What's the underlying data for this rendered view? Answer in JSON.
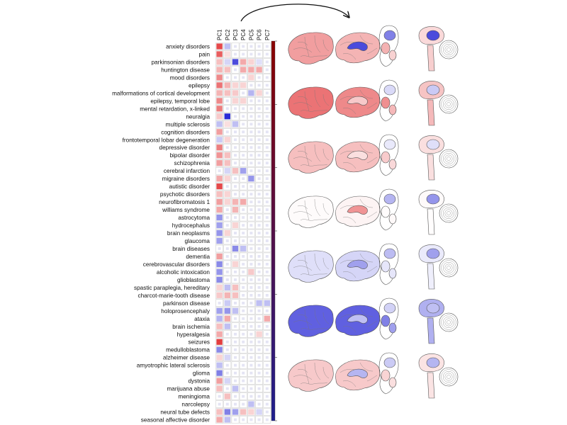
{
  "chart_data": {
    "type": "heatmap",
    "columns": [
      "PC1",
      "PC2",
      "PC3",
      "PC4",
      "PC5",
      "PC6",
      "PC7"
    ],
    "rows": [
      "anxiety disorders",
      "pain",
      "parkinsonian disorders",
      "huntington disease",
      "mood disorders",
      "epilepsy",
      "malformations of cortical development",
      "epilepsy, temporal lobe",
      "mental retardation, x-linked",
      "neuralgia",
      "multiple sclerosis",
      "cognition disorders",
      "frontotemporal lobar degeneration",
      "depressive disorder",
      "bipolar disorder",
      "schizophrenia",
      "cerebral infarction",
      "migraine disorders",
      "autistic disorder",
      "psychotic disorders",
      "neurofibromatosis 1",
      "williams syndrome",
      "astrocytoma",
      "hydrocephalus",
      "brain neoplasms",
      "glaucoma",
      "brain diseases",
      "dementia",
      "cerebrovascular disorders",
      "alcoholic intoxication",
      "glioblastoma",
      "spastic paraplegia, hereditary",
      "charcot-marie-tooth disease",
      "parkinson disease",
      "holoprosencephaly",
      "ataxia",
      "brain ischemia",
      "hyperalgesia",
      "seizures",
      "medulloblastoma",
      "alzheimer disease",
      "amyotrophic lateral sclerosis",
      "glioma",
      "dystonia",
      "marijuana abuse",
      "meningioma",
      "narcolepsy",
      "neural tube defects",
      "seasonal affective disorder"
    ],
    "values": [
      [
        0.85,
        -0.3,
        0.0,
        0.0,
        0.0,
        0.0,
        0.0
      ],
      [
        0.75,
        0.15,
        0.0,
        0.0,
        0.0,
        0.0,
        0.0
      ],
      [
        0.3,
        -0.2,
        -0.85,
        0.4,
        0.2,
        -0.15,
        0.0
      ],
      [
        0.35,
        0.3,
        0.0,
        0.4,
        0.4,
        0.4,
        0.0
      ],
      [
        0.55,
        0.0,
        0.0,
        0.0,
        0.2,
        0.0,
        0.0
      ],
      [
        0.65,
        0.35,
        0.2,
        0.2,
        0.0,
        0.0,
        0.0
      ],
      [
        0.35,
        0.3,
        0.25,
        0.0,
        -0.35,
        0.2,
        0.0
      ],
      [
        0.55,
        0.0,
        0.2,
        0.2,
        0.0,
        0.0,
        0.0
      ],
      [
        0.6,
        0.0,
        0.0,
        0.0,
        0.0,
        0.0,
        0.0
      ],
      [
        0.25,
        -1.0,
        0.0,
        0.0,
        0.0,
        0.0,
        0.0
      ],
      [
        -0.3,
        0.15,
        -0.3,
        0.0,
        0.0,
        0.0,
        0.0
      ],
      [
        0.45,
        0.0,
        0.0,
        0.0,
        0.0,
        0.0,
        0.0
      ],
      [
        -0.25,
        0.2,
        0.0,
        0.0,
        0.0,
        0.0,
        0.0
      ],
      [
        0.6,
        0.0,
        0.0,
        0.0,
        0.0,
        0.0,
        0.0
      ],
      [
        0.5,
        0.3,
        0.0,
        0.0,
        0.0,
        0.0,
        0.0
      ],
      [
        0.45,
        0.3,
        0.0,
        0.0,
        0.0,
        0.0,
        0.0
      ],
      [
        0.0,
        -0.2,
        0.3,
        -0.45,
        0.0,
        0.0,
        0.0
      ],
      [
        0.4,
        0.2,
        0.0,
        0.0,
        -0.5,
        0.0,
        0.0
      ],
      [
        0.85,
        0.0,
        0.0,
        0.0,
        0.0,
        0.0,
        0.0
      ],
      [
        0.3,
        0.2,
        0.0,
        0.0,
        0.0,
        0.0,
        0.0
      ],
      [
        0.45,
        0.2,
        0.35,
        0.4,
        0.0,
        0.0,
        0.0
      ],
      [
        0.4,
        0.0,
        0.35,
        0.0,
        0.0,
        0.0,
        0.0
      ],
      [
        -0.5,
        0.0,
        0.0,
        0.0,
        0.0,
        0.0,
        0.0
      ],
      [
        -0.45,
        0.0,
        0.2,
        0.0,
        0.0,
        0.0,
        0.0
      ],
      [
        -0.5,
        0.2,
        0.0,
        0.0,
        0.0,
        0.0,
        0.0
      ],
      [
        -0.45,
        0.0,
        0.0,
        0.0,
        0.0,
        0.0,
        0.0
      ],
      [
        0.0,
        0.0,
        -0.55,
        -0.3,
        0.0,
        0.0,
        0.0
      ],
      [
        0.45,
        0.0,
        0.0,
        0.0,
        0.0,
        0.0,
        0.0
      ],
      [
        -0.55,
        0.0,
        0.2,
        0.0,
        0.0,
        0.0,
        0.0
      ],
      [
        -0.5,
        0.0,
        0.0,
        0.0,
        0.25,
        0.0,
        0.0
      ],
      [
        -0.55,
        0.0,
        0.0,
        0.0,
        0.0,
        0.0,
        0.0
      ],
      [
        0.2,
        -0.3,
        0.3,
        0.0,
        0.0,
        0.0,
        0.0
      ],
      [
        0.25,
        0.35,
        0.3,
        0.0,
        0.0,
        0.0,
        0.0
      ],
      [
        0.0,
        -0.25,
        0.0,
        0.0,
        0.0,
        -0.3,
        -0.3
      ],
      [
        -0.45,
        -0.5,
        -0.3,
        0.0,
        0.0,
        0.0,
        0.0
      ],
      [
        -0.35,
        0.4,
        0.0,
        0.0,
        0.0,
        0.0,
        0.4
      ],
      [
        0.3,
        -0.3,
        0.0,
        0.0,
        0.0,
        0.0,
        0.0
      ],
      [
        0.4,
        0.0,
        0.0,
        0.0,
        0.0,
        0.2,
        0.0
      ],
      [
        0.9,
        0.0,
        0.0,
        0.0,
        0.0,
        0.0,
        0.0
      ],
      [
        -0.55,
        0.0,
        0.0,
        0.0,
        0.0,
        0.0,
        0.0
      ],
      [
        0.2,
        -0.2,
        0.0,
        0.0,
        0.0,
        0.0,
        0.0
      ],
      [
        -0.3,
        0.0,
        0.0,
        0.0,
        0.0,
        0.0,
        0.0
      ],
      [
        -0.6,
        0.0,
        0.0,
        0.0,
        0.0,
        0.0,
        0.0
      ],
      [
        0.45,
        -0.2,
        0.0,
        0.0,
        0.0,
        0.0,
        0.0
      ],
      [
        0.3,
        0.0,
        -0.3,
        0.0,
        0.0,
        0.0,
        0.0
      ],
      [
        0.0,
        0.3,
        0.0,
        0.0,
        0.0,
        0.0,
        0.0
      ],
      [
        0.0,
        0.0,
        0.0,
        0.0,
        -0.3,
        0.0,
        0.0
      ],
      [
        0.3,
        -0.6,
        -0.45,
        0.3,
        0.2,
        -0.2,
        0.0
      ],
      [
        0.4,
        -0.3,
        0.0,
        0.0,
        0.0,
        0.0,
        0.0
      ]
    ],
    "value_range": [
      -1,
      1
    ],
    "colormap": {
      "negative": "#2b2bd6",
      "zero": "#ffffff",
      "positive": "#e0282a"
    },
    "colorbar_gradient": [
      "#8b0000",
      "#1f1f8f"
    ],
    "legend": "colorbar right of heatmap",
    "grid": true
  },
  "brain_maps": {
    "count": 7,
    "views": [
      "lateral",
      "medial",
      "subcortical-sagittal",
      "brainstem-cerebellum"
    ],
    "rows": [
      {
        "lateral": 0.45,
        "medial": 0.35,
        "medial_spot": -0.85
      },
      {
        "lateral": 0.65,
        "medial": 0.55,
        "medial_spot": 0.25
      },
      {
        "lateral": 0.3,
        "medial": 0.3,
        "medial_spot": 0.15
      },
      {
        "lateral": 0.02,
        "medial": 0.05,
        "medial_spot": 0.5
      },
      {
        "lateral": -0.15,
        "medial": -0.2,
        "medial_spot": -0.45
      },
      {
        "lateral": -0.75,
        "medial": -0.75,
        "medial_spot": -0.3
      },
      {
        "lateral": 0.25,
        "medial": 0.25,
        "medial_spot": -0.35
      }
    ]
  },
  "colors": {
    "positive": "#e0282a",
    "negative": "#2b2bd6",
    "grid": "#c8c8c8",
    "text": "#111111"
  }
}
